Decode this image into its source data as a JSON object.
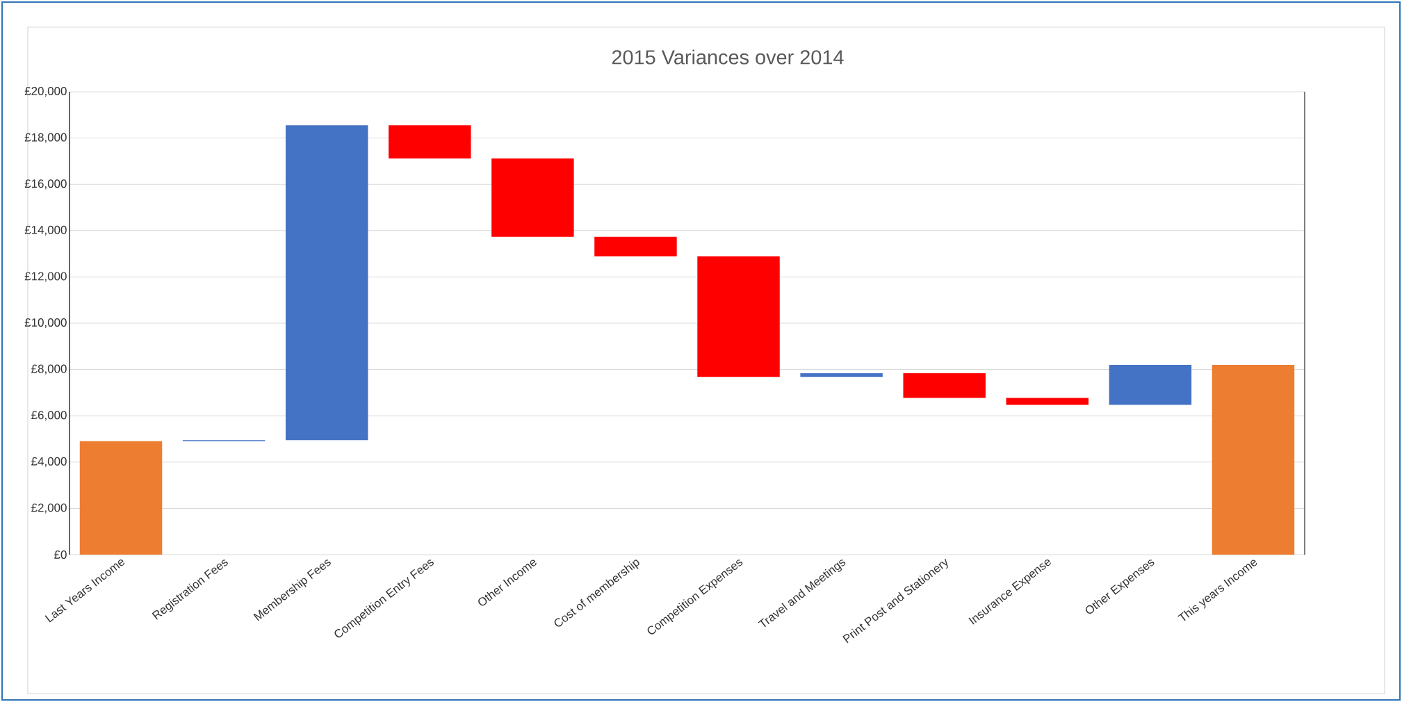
{
  "chart_data": {
    "type": "bar",
    "title": "2015 Variances over 2014",
    "categories": [
      "Last Years Income",
      "Registration Fees",
      "Membership Fees",
      "Competition Entry Fees",
      "Other Income",
      "Cost of membership",
      "Competition Expenses",
      "Travel and Meetings",
      "Print Post and Stationery",
      "Insurance Expense",
      "Other Expenses",
      "This years Income"
    ],
    "base": [
      0,
      4900,
      4950,
      18550,
      17120,
      13730,
      12890,
      7680,
      7840,
      6770,
      6470,
      0
    ],
    "values": [
      4900,
      50,
      13600,
      -1430,
      -3390,
      -840,
      -5210,
      160,
      -1070,
      -300,
      1730,
      8200
    ],
    "colors": [
      "#ed7d31",
      "#4472c4",
      "#4472c4",
      "#ff0000",
      "#ff0000",
      "#ff0000",
      "#ff0000",
      "#4472c4",
      "#ff0000",
      "#ff0000",
      "#4472c4",
      "#ed7d31"
    ],
    "ylim": [
      0,
      20000
    ],
    "yticks": [
      {
        "value": 0,
        "label": "£0"
      },
      {
        "value": 2000,
        "label": "£2,000"
      },
      {
        "value": 4000,
        "label": "£4,000"
      },
      {
        "value": 6000,
        "label": "£6,000"
      },
      {
        "value": 8000,
        "label": "£8,000"
      },
      {
        "value": 10000,
        "label": "£10,000"
      },
      {
        "value": 12000,
        "label": "£12,000"
      },
      {
        "value": 14000,
        "label": "£14,000"
      },
      {
        "value": 16000,
        "label": "£16,000"
      },
      {
        "value": 18000,
        "label": "£18,000"
      },
      {
        "value": 20000,
        "label": "£20,000"
      }
    ],
    "grid": "y"
  }
}
